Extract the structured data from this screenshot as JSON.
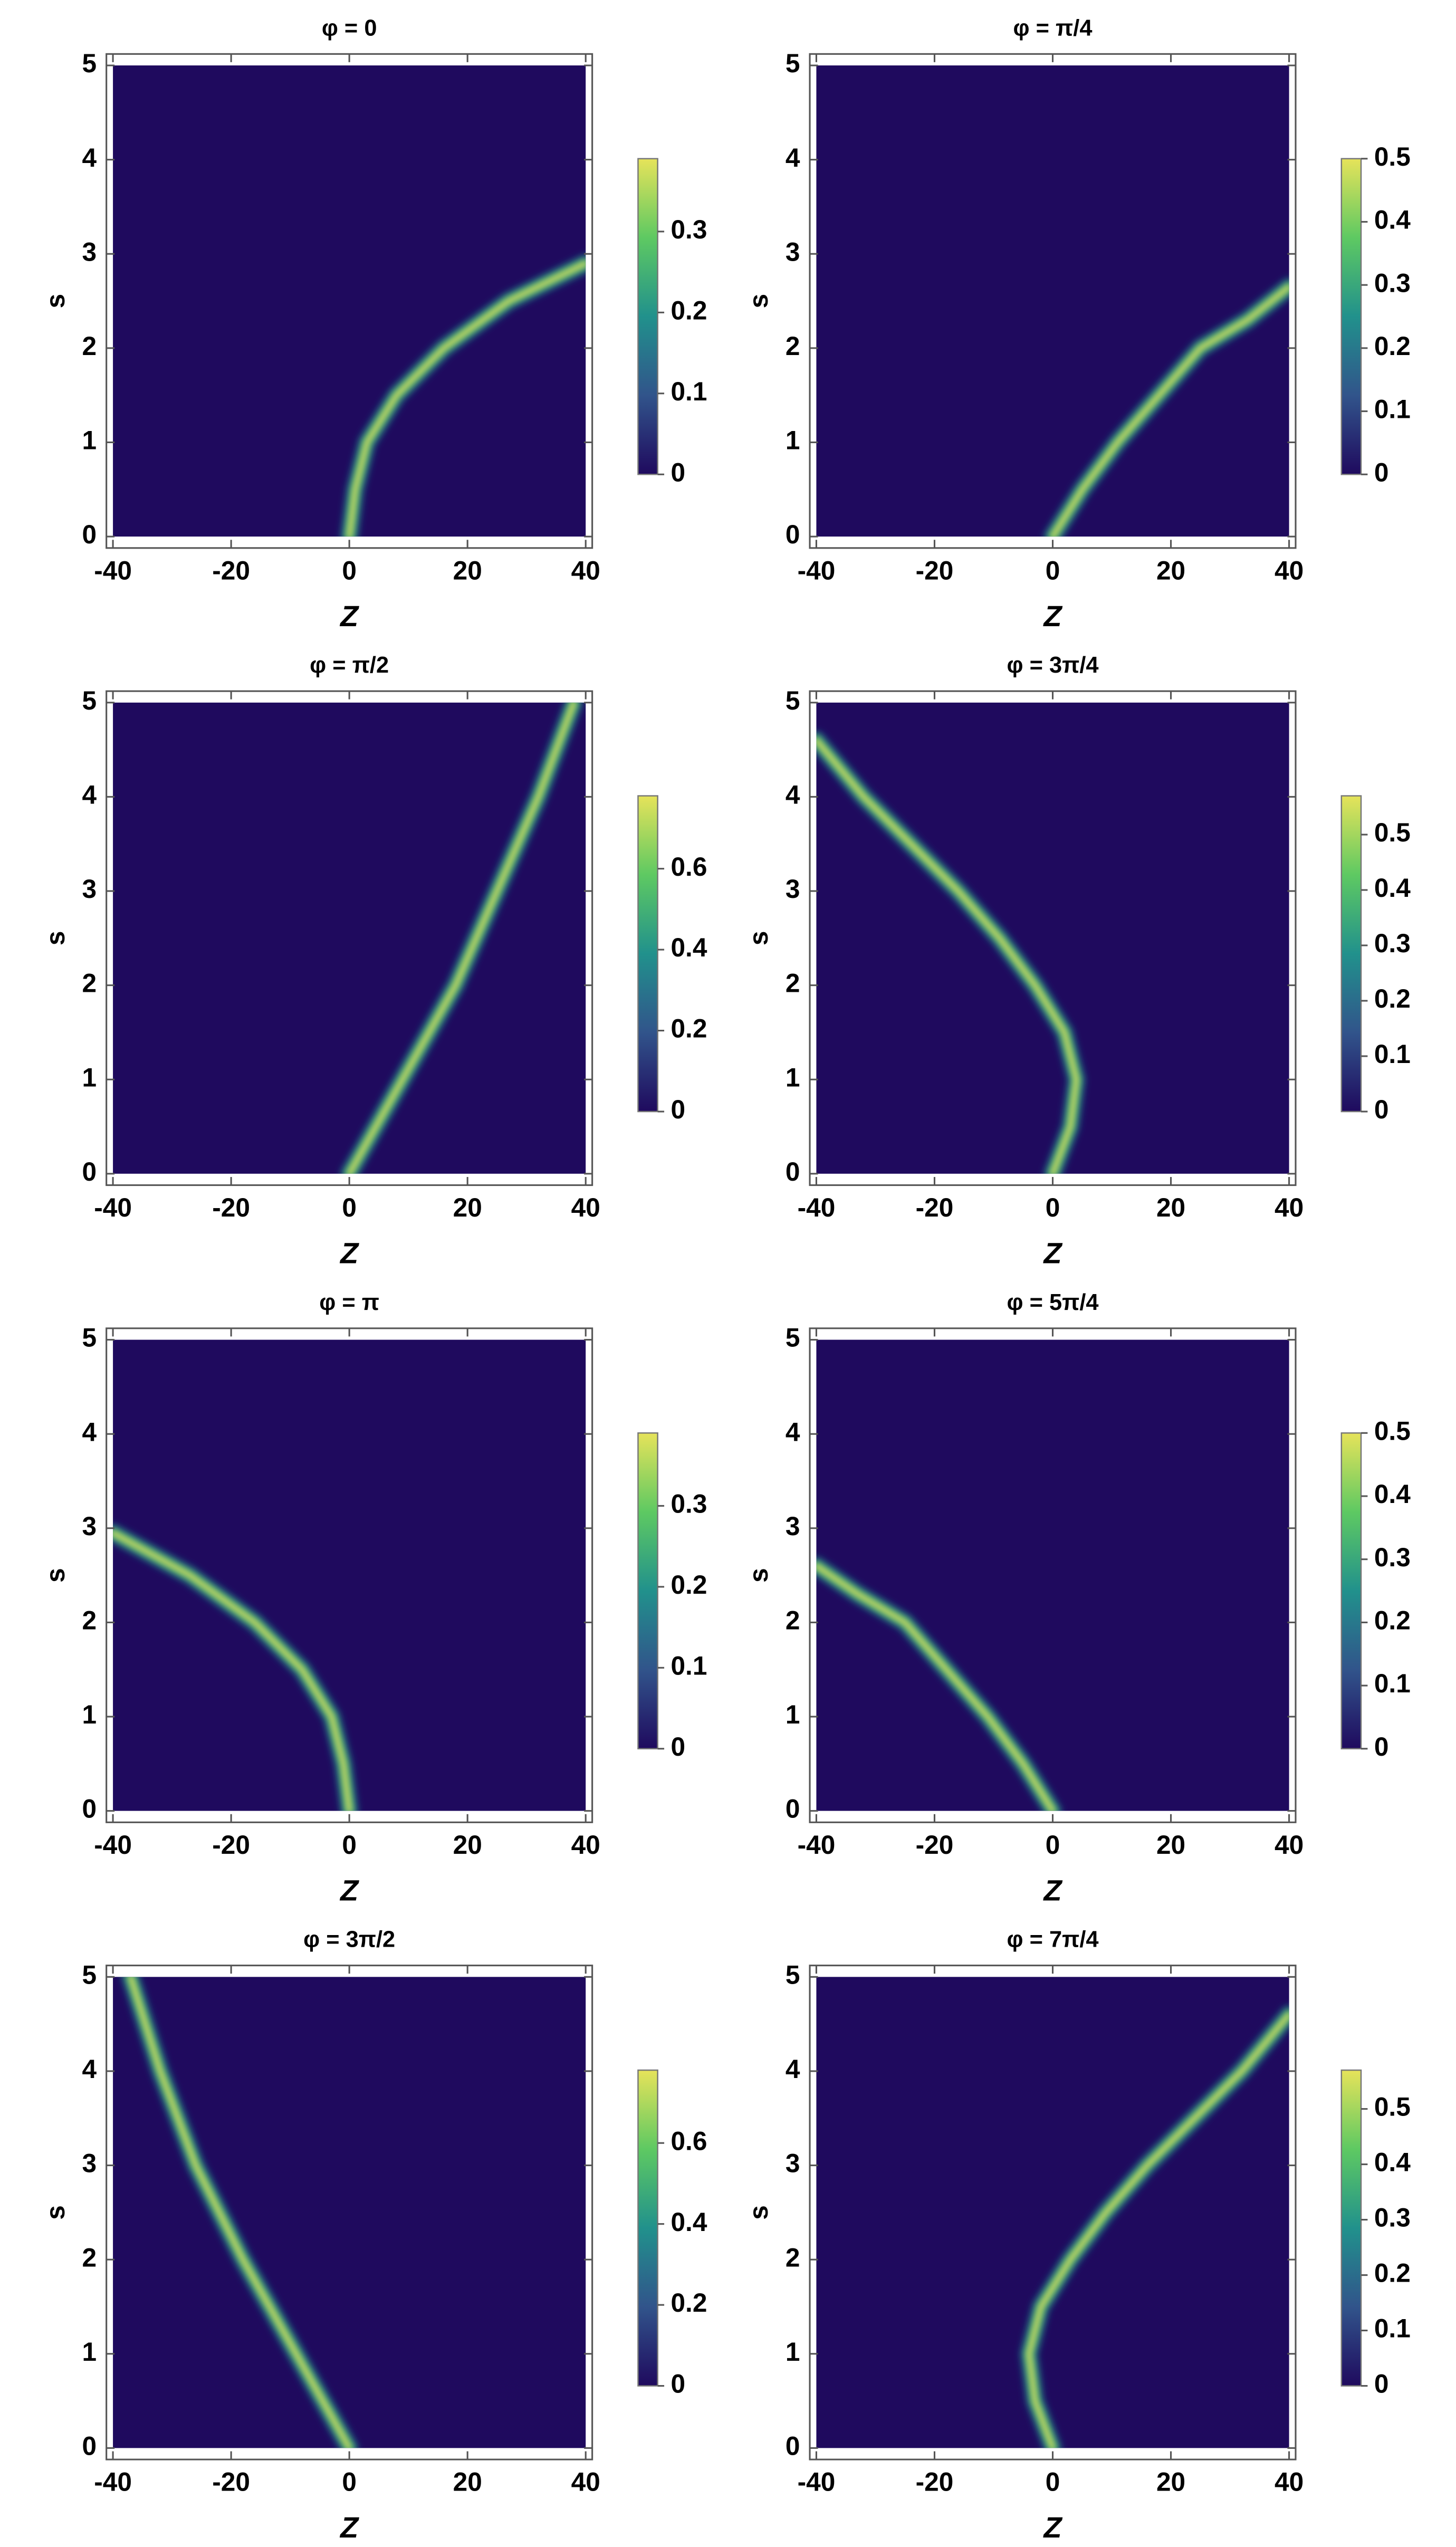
{
  "chart_data": [
    {
      "type": "density",
      "title": "φ = 0",
      "xlabel": "Z",
      "ylabel": "s",
      "xlim": [
        -40,
        40
      ],
      "ylim": [
        0,
        5
      ],
      "xticks": [
        -40,
        -20,
        0,
        20,
        40
      ],
      "yticks": [
        0,
        1,
        2,
        3,
        4,
        5
      ],
      "x": [
        0,
        1,
        3,
        8,
        16,
        27,
        40
      ],
      "y": [
        0,
        0.5,
        1,
        1.5,
        2,
        2.5,
        2.9
      ],
      "peak": 0.39,
      "colorbar_lim": [
        0,
        0.39
      ],
      "colorbar_ticks": [
        0,
        0.1,
        0.2,
        0.3
      ]
    },
    {
      "type": "density",
      "title": "φ = π/4",
      "xlabel": "Z",
      "ylabel": "s",
      "xlim": [
        -40,
        40
      ],
      "ylim": [
        0,
        5
      ],
      "xticks": [
        -40,
        -20,
        0,
        20,
        40
      ],
      "yticks": [
        0,
        1,
        2,
        3,
        4,
        5
      ],
      "x": [
        0,
        5,
        11,
        18,
        25,
        33,
        40
      ],
      "y": [
        0,
        0.5,
        1,
        1.5,
        2,
        2.3,
        2.65
      ],
      "peak": 0.5,
      "colorbar_lim": [
        0,
        0.5
      ],
      "colorbar_ticks": [
        0,
        0.1,
        0.2,
        0.3,
        0.4,
        0.5
      ]
    },
    {
      "type": "density",
      "title": "φ = π/2",
      "xlabel": "Z",
      "ylabel": "s",
      "xlim": [
        -40,
        40
      ],
      "ylim": [
        0,
        5
      ],
      "xticks": [
        -40,
        -20,
        0,
        20,
        40
      ],
      "yticks": [
        0,
        1,
        2,
        3,
        4,
        5
      ],
      "x": [
        0,
        9,
        18,
        25,
        32,
        38
      ],
      "y": [
        0,
        1,
        2,
        3,
        4,
        5
      ],
      "peak": 0.78,
      "colorbar_lim": [
        0,
        0.78
      ],
      "colorbar_ticks": [
        0,
        0.2,
        0.4,
        0.6
      ]
    },
    {
      "type": "density",
      "title": "φ = 3π/4",
      "xlabel": "Z",
      "ylabel": "s",
      "xlim": [
        -40,
        40
      ],
      "ylim": [
        0,
        5
      ],
      "xticks": [
        -40,
        -20,
        0,
        20,
        40
      ],
      "yticks": [
        0,
        1,
        2,
        3,
        4,
        5
      ],
      "x": [
        0,
        3,
        4,
        2,
        -3,
        -9,
        -16,
        -24,
        -32,
        -40
      ],
      "y": [
        0,
        0.5,
        1,
        1.5,
        2,
        2.5,
        3,
        3.5,
        4,
        4.6
      ],
      "peak": 0.57,
      "colorbar_lim": [
        0,
        0.57
      ],
      "colorbar_ticks": [
        0,
        0.1,
        0.2,
        0.3,
        0.4,
        0.5
      ]
    },
    {
      "type": "density",
      "title": "φ = π",
      "xlabel": "Z",
      "ylabel": "s",
      "xlim": [
        -40,
        40
      ],
      "ylim": [
        0,
        5
      ],
      "xticks": [
        -40,
        -20,
        0,
        20,
        40
      ],
      "yticks": [
        0,
        1,
        2,
        3,
        4,
        5
      ],
      "x": [
        0,
        -1,
        -3,
        -8,
        -16,
        -27,
        -40
      ],
      "y": [
        0,
        0.5,
        1,
        1.5,
        2,
        2.5,
        2.95
      ],
      "peak": 0.39,
      "colorbar_lim": [
        0,
        0.39
      ],
      "colorbar_ticks": [
        0,
        0.1,
        0.2,
        0.3
      ]
    },
    {
      "type": "density",
      "title": "φ  = 5π/4",
      "xlabel": "Z",
      "ylabel": "s",
      "xlim": [
        -40,
        40
      ],
      "ylim": [
        0,
        5
      ],
      "xticks": [
        -40,
        -20,
        0,
        20,
        40
      ],
      "yticks": [
        0,
        1,
        2,
        3,
        4,
        5
      ],
      "x": [
        0,
        -5,
        -11,
        -18,
        -25,
        -33,
        -40
      ],
      "y": [
        0,
        0.5,
        1,
        1.5,
        2,
        2.3,
        2.6
      ],
      "peak": 0.5,
      "colorbar_lim": [
        0,
        0.5
      ],
      "colorbar_ticks": [
        0,
        0.1,
        0.2,
        0.3,
        0.4,
        0.5
      ]
    },
    {
      "type": "density",
      "title": "φ  = 3π/2",
      "xlabel": "Z",
      "ylabel": "s",
      "xlim": [
        -40,
        40
      ],
      "ylim": [
        0,
        5
      ],
      "xticks": [
        -40,
        -20,
        0,
        20,
        40
      ],
      "yticks": [
        0,
        1,
        2,
        3,
        4,
        5
      ],
      "x": [
        0,
        -9,
        -18,
        -26,
        -32,
        -37
      ],
      "y": [
        0,
        1,
        2,
        3,
        4,
        5
      ],
      "peak": 0.78,
      "colorbar_lim": [
        0,
        0.78
      ],
      "colorbar_ticks": [
        0,
        0.2,
        0.4,
        0.6
      ]
    },
    {
      "type": "density",
      "title": "φ  = 7π/4",
      "xlabel": "Z",
      "ylabel": "s",
      "xlim": [
        -40,
        40
      ],
      "ylim": [
        0,
        5
      ],
      "xticks": [
        -40,
        -20,
        0,
        20,
        40
      ],
      "yticks": [
        0,
        1,
        2,
        3,
        4,
        5
      ],
      "x": [
        0,
        -3,
        -4,
        -2,
        3,
        9,
        16,
        24,
        32,
        40
      ],
      "y": [
        0,
        0.5,
        1,
        1.5,
        2,
        2.5,
        3,
        3.5,
        4,
        4.6
      ],
      "peak": 0.57,
      "colorbar_lim": [
        0,
        0.57
      ],
      "colorbar_ticks": [
        0,
        0.1,
        0.2,
        0.3,
        0.4,
        0.5
      ]
    }
  ]
}
